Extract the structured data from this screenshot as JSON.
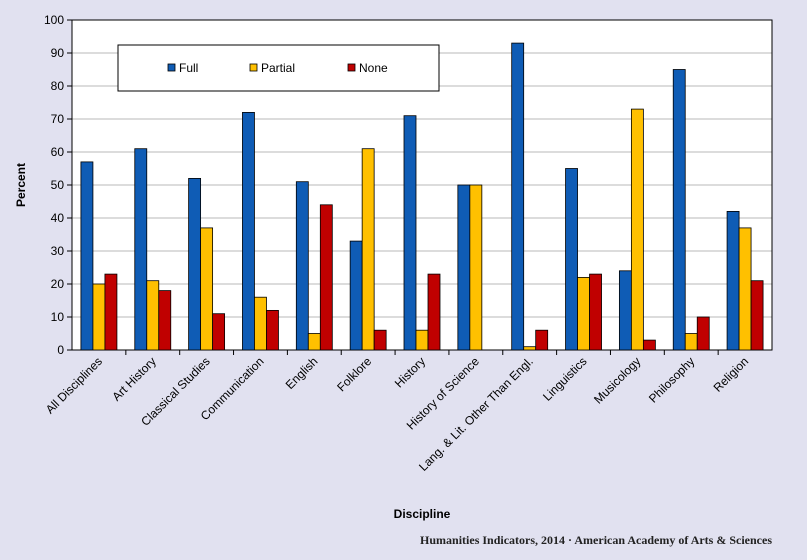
{
  "chart_data": {
    "type": "bar",
    "title": "",
    "xlabel": "Discipline",
    "ylabel": "Percent",
    "ylim": [
      0,
      100
    ],
    "yticks": [
      0,
      10,
      20,
      30,
      40,
      50,
      60,
      70,
      80,
      90,
      100
    ],
    "grid": true,
    "legend_position": "top-left",
    "categories": [
      "All Disciplines",
      "Art History",
      "Classical Studies",
      "Communication",
      "English",
      "Folklore",
      "History",
      "History of Science",
      "Lang. & Lit. Other Than Engl.",
      "Linguistics",
      "Musicology",
      "Philosophy",
      "Religion"
    ],
    "series": [
      {
        "name": "Full",
        "color": "#0f5cb5",
        "values": [
          57,
          61,
          52,
          72,
          51,
          33,
          71,
          50,
          93,
          55,
          24,
          85,
          42
        ]
      },
      {
        "name": "Partial",
        "color": "#ffc000",
        "values": [
          20,
          21,
          37,
          16,
          5,
          61,
          6,
          50,
          1,
          22,
          73,
          5,
          37
        ]
      },
      {
        "name": "None",
        "color": "#c00000",
        "values": [
          23,
          18,
          11,
          12,
          44,
          6,
          23,
          0,
          6,
          23,
          3,
          10,
          21
        ]
      }
    ]
  },
  "footer": {
    "credit": "Humanities Indicators, 2014 · American Academy of Arts & Sciences"
  }
}
